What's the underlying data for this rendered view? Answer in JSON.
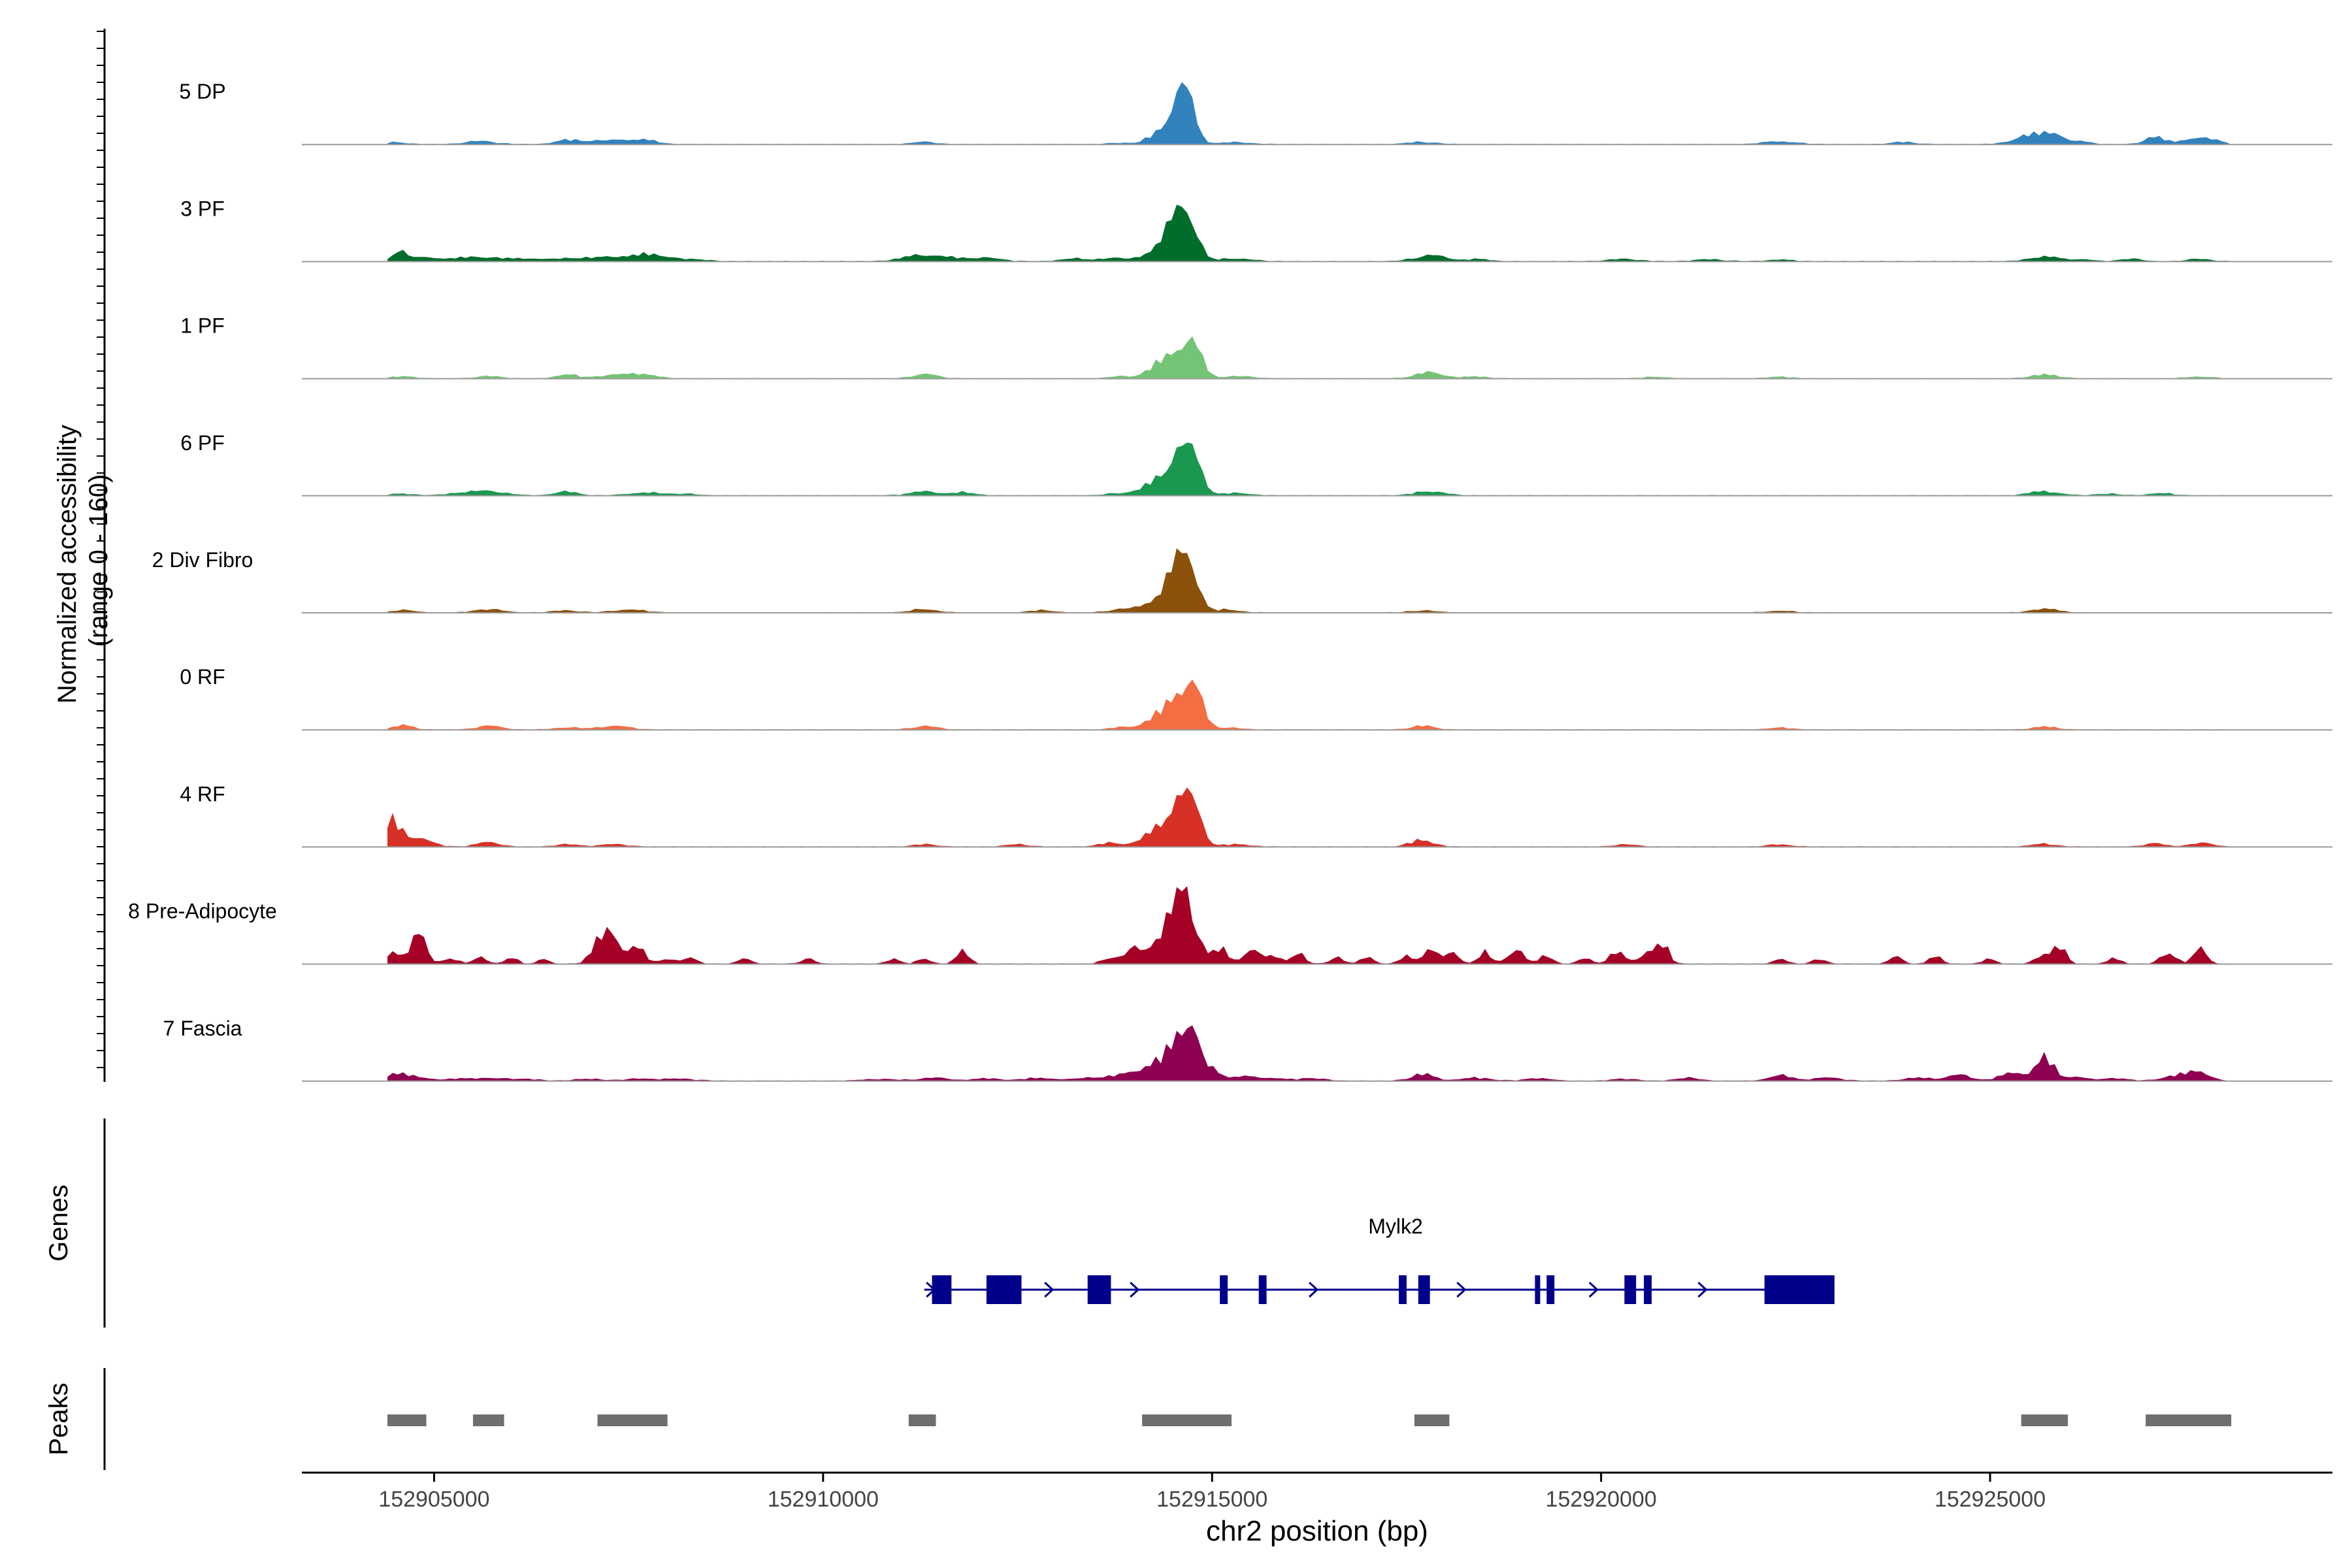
{
  "chart_data": {
    "type": "area",
    "title": "",
    "xlabel": "chr2 position (bp)",
    "ylabel_line1": "Normalized accessibility",
    "ylabel_line2": "(range 0 - 160)",
    "y_range": [
      0,
      160
    ],
    "x_range": [
      152903300,
      152929400
    ],
    "x_ticks": [
      152905000,
      152910000,
      152915000,
      152920000,
      152925000
    ],
    "x_tick_labels": [
      "152905000",
      "152910000",
      "152915000",
      "152920000",
      "152925000"
    ],
    "data_start": 152904400,
    "data_end": 152928100,
    "tracks": [
      {
        "name": "5 DP",
        "color": "#3182bd",
        "peaks": [
          [
            152904500,
            5,
            150
          ],
          [
            152905600,
            8,
            200
          ],
          [
            152906700,
            10,
            150
          ],
          [
            152907000,
            8,
            150
          ],
          [
            152907400,
            10,
            200
          ],
          [
            152907700,
            10,
            160
          ],
          [
            152911300,
            6,
            150
          ],
          [
            152913800,
            4,
            120
          ],
          [
            152914400,
            42,
            170
          ],
          [
            152914600,
            85,
            130
          ],
          [
            152914700,
            60,
            110
          ],
          [
            152915300,
            5,
            200
          ],
          [
            152917700,
            6,
            180
          ],
          [
            152922300,
            8,
            200
          ],
          [
            152923900,
            6,
            150
          ],
          [
            152925500,
            22,
            200
          ],
          [
            152925800,
            30,
            130
          ],
          [
            152926200,
            8,
            100
          ],
          [
            152927100,
            20,
            120
          ],
          [
            152927600,
            15,
            180
          ],
          [
            152927900,
            8,
            140
          ]
        ]
      },
      {
        "name": "3 PF",
        "color": "#006d2c",
        "peaks": [
          [
            152904550,
            30,
            80
          ],
          [
            152904900,
            10,
            250
          ],
          [
            152905600,
            12,
            250
          ],
          [
            152906200,
            8,
            180
          ],
          [
            152906800,
            10,
            200
          ],
          [
            152907300,
            12,
            180
          ],
          [
            152907800,
            20,
            220
          ],
          [
            152908400,
            5,
            150
          ],
          [
            152911300,
            18,
            250
          ],
          [
            152912000,
            10,
            250
          ],
          [
            152913200,
            8,
            150
          ],
          [
            152913700,
            10,
            150
          ],
          [
            152914400,
            50,
            200
          ],
          [
            152914600,
            90,
            140
          ],
          [
            152914750,
            60,
            100
          ],
          [
            152915300,
            8,
            200
          ],
          [
            152917800,
            16,
            200
          ],
          [
            152918400,
            6,
            150
          ],
          [
            152920300,
            6,
            200
          ],
          [
            152921400,
            5,
            200
          ],
          [
            152922300,
            5,
            150
          ],
          [
            152925700,
            14,
            180
          ],
          [
            152926200,
            6,
            120
          ],
          [
            152926800,
            8,
            120
          ],
          [
            152927700,
            6,
            150
          ]
        ]
      },
      {
        "name": "1 PF",
        "color": "#74c476",
        "peaks": [
          [
            152904600,
            5,
            150
          ],
          [
            152905700,
            6,
            150
          ],
          [
            152906700,
            12,
            120
          ],
          [
            152907300,
            10,
            200
          ],
          [
            152907700,
            12,
            150
          ],
          [
            152911300,
            12,
            150
          ],
          [
            152913800,
            5,
            120
          ],
          [
            152914400,
            45,
            200
          ],
          [
            152914650,
            70,
            130
          ],
          [
            152914800,
            45,
            100
          ],
          [
            152915300,
            6,
            200
          ],
          [
            152917800,
            16,
            180
          ],
          [
            152918400,
            5,
            150
          ],
          [
            152920700,
            4,
            150
          ],
          [
            152922300,
            4,
            150
          ],
          [
            152925700,
            10,
            180
          ],
          [
            152927700,
            5,
            150
          ]
        ]
      },
      {
        "name": "6 PF",
        "color": "#1a9850",
        "peaks": [
          [
            152904600,
            5,
            150
          ],
          [
            152905300,
            6,
            150
          ],
          [
            152905700,
            12,
            220
          ],
          [
            152906700,
            10,
            150
          ],
          [
            152907700,
            8,
            200
          ],
          [
            152908200,
            5,
            150
          ],
          [
            152911300,
            10,
            200
          ],
          [
            152911800,
            8,
            150
          ],
          [
            152913800,
            6,
            150
          ],
          [
            152914400,
            48,
            220
          ],
          [
            152914600,
            85,
            150
          ],
          [
            152914800,
            60,
            100
          ],
          [
            152915300,
            6,
            200
          ],
          [
            152917800,
            12,
            180
          ],
          [
            152925700,
            12,
            180
          ],
          [
            152926500,
            5,
            150
          ],
          [
            152927200,
            6,
            150
          ]
        ]
      },
      {
        "name": "2 Div Fibro",
        "color": "#8c510a",
        "peaks": [
          [
            152904600,
            8,
            120
          ],
          [
            152905700,
            10,
            160
          ],
          [
            152906700,
            6,
            150
          ],
          [
            152907500,
            8,
            200
          ],
          [
            152911300,
            10,
            150
          ],
          [
            152912800,
            6,
            150
          ],
          [
            152913800,
            8,
            150
          ],
          [
            152914400,
            48,
            220
          ],
          [
            152914600,
            100,
            140
          ],
          [
            152914750,
            70,
            100
          ],
          [
            152915200,
            8,
            150
          ],
          [
            152917700,
            6,
            150
          ],
          [
            152922300,
            5,
            150
          ],
          [
            152925700,
            12,
            150
          ]
        ]
      },
      {
        "name": "0 RF",
        "color": "#f46d43",
        "peaks": [
          [
            152904600,
            12,
            120
          ],
          [
            152905700,
            10,
            160
          ],
          [
            152906700,
            6,
            150
          ],
          [
            152907300,
            10,
            200
          ],
          [
            152911300,
            10,
            150
          ],
          [
            152913800,
            5,
            120
          ],
          [
            152914400,
            45,
            220
          ],
          [
            152914650,
            90,
            140
          ],
          [
            152914800,
            55,
            100
          ],
          [
            152915200,
            6,
            150
          ],
          [
            152917700,
            10,
            150
          ],
          [
            152922300,
            5,
            150
          ],
          [
            152925700,
            8,
            150
          ]
        ]
      },
      {
        "name": "4 RF",
        "color": "#d73027",
        "peaks": [
          [
            152904450,
            55,
            100
          ],
          [
            152904700,
            30,
            200
          ],
          [
            152905700,
            12,
            150
          ],
          [
            152906700,
            6,
            150
          ],
          [
            152907300,
            6,
            200
          ],
          [
            152911300,
            6,
            150
          ],
          [
            152912500,
            6,
            150
          ],
          [
            152913700,
            10,
            150
          ],
          [
            152914400,
            55,
            220
          ],
          [
            152914600,
            95,
            140
          ],
          [
            152914800,
            60,
            100
          ],
          [
            152915300,
            6,
            200
          ],
          [
            152917700,
            18,
            150
          ],
          [
            152920300,
            6,
            150
          ],
          [
            152922300,
            6,
            150
          ],
          [
            152925700,
            8,
            150
          ],
          [
            152927100,
            10,
            120
          ],
          [
            152927700,
            10,
            150
          ]
        ]
      },
      {
        "name": "8 Pre-Adipocyte",
        "color": "#a50026",
        "peaks": [
          [
            152904500,
            35,
            100
          ],
          [
            152904800,
            80,
            90
          ],
          [
            152905200,
            15,
            100
          ],
          [
            152905600,
            20,
            80
          ],
          [
            152906000,
            15,
            80
          ],
          [
            152906400,
            15,
            60
          ],
          [
            152907100,
            50,
            100
          ],
          [
            152907300,
            80,
            100
          ],
          [
            152907600,
            45,
            100
          ],
          [
            152908000,
            15,
            100
          ],
          [
            152908300,
            15,
            80
          ],
          [
            152909000,
            15,
            80
          ],
          [
            152909800,
            15,
            80
          ],
          [
            152910900,
            15,
            80
          ],
          [
            152911300,
            15,
            80
          ],
          [
            152911800,
            35,
            80
          ],
          [
            152913700,
            20,
            100
          ],
          [
            152914000,
            40,
            100
          ],
          [
            152914300,
            80,
            100
          ],
          [
            152914500,
            140,
            80
          ],
          [
            152914650,
            170,
            60
          ],
          [
            152914800,
            100,
            80
          ],
          [
            152915100,
            40,
            100
          ],
          [
            152915500,
            40,
            100
          ],
          [
            152915800,
            20,
            100
          ],
          [
            152916100,
            30,
            80
          ],
          [
            152916600,
            20,
            80
          ],
          [
            152917000,
            20,
            80
          ],
          [
            152917500,
            20,
            80
          ],
          [
            152917800,
            40,
            100
          ],
          [
            152918100,
            30,
            80
          ],
          [
            152918500,
            30,
            80
          ],
          [
            152918900,
            40,
            100
          ],
          [
            152919300,
            25,
            80
          ],
          [
            152919800,
            15,
            80
          ],
          [
            152920200,
            30,
            100
          ],
          [
            152920600,
            35,
            100
          ],
          [
            152920800,
            45,
            80
          ],
          [
            152922300,
            15,
            80
          ],
          [
            152922800,
            15,
            80
          ],
          [
            152923800,
            20,
            80
          ],
          [
            152924300,
            20,
            80
          ],
          [
            152925000,
            15,
            80
          ],
          [
            152925700,
            30,
            100
          ],
          [
            152925900,
            40,
            80
          ],
          [
            152926600,
            15,
            80
          ],
          [
            152927300,
            30,
            100
          ],
          [
            152927700,
            40,
            80
          ]
        ]
      },
      {
        "name": "7 Fascia",
        "color": "#8e0152",
        "peaks": [
          [
            152904500,
            20,
            120
          ],
          [
            152904800,
            10,
            150
          ],
          [
            152905500,
            8,
            250
          ],
          [
            152906100,
            6,
            200
          ],
          [
            152907000,
            5,
            200
          ],
          [
            152907700,
            6,
            200
          ],
          [
            152908200,
            5,
            200
          ],
          [
            152910700,
            5,
            200
          ],
          [
            152911400,
            8,
            200
          ],
          [
            152912100,
            6,
            200
          ],
          [
            152912800,
            8,
            200
          ],
          [
            152913500,
            10,
            200
          ],
          [
            152914000,
            18,
            200
          ],
          [
            152914300,
            40,
            180
          ],
          [
            152914600,
            120,
            130
          ],
          [
            152914750,
            90,
            90
          ],
          [
            152915000,
            30,
            120
          ],
          [
            152915400,
            12,
            150
          ],
          [
            152915800,
            8,
            150
          ],
          [
            152916300,
            8,
            150
          ],
          [
            152917700,
            18,
            150
          ],
          [
            152918400,
            8,
            200
          ],
          [
            152919200,
            8,
            150
          ],
          [
            152920300,
            6,
            150
          ],
          [
            152921100,
            8,
            150
          ],
          [
            152922300,
            14,
            150
          ],
          [
            152922900,
            8,
            200
          ],
          [
            152924100,
            8,
            200
          ],
          [
            152924600,
            15,
            150
          ],
          [
            152925300,
            20,
            180
          ],
          [
            152925700,
            60,
            120
          ],
          [
            152926100,
            12,
            120
          ],
          [
            152926600,
            8,
            150
          ],
          [
            152927400,
            15,
            180
          ],
          [
            152927700,
            25,
            120
          ]
        ]
      }
    ],
    "genes": {
      "label": "Genes",
      "name": "Mylk2",
      "start": 152911300,
      "end": 152923000,
      "strand": "+",
      "exons": [
        [
          152911400,
          152911650
        ],
        [
          152912100,
          152912550
        ],
        [
          152913400,
          152913700
        ],
        [
          152915100,
          152915200
        ],
        [
          152915600,
          152915700
        ],
        [
          152917400,
          152917500
        ],
        [
          152917650,
          152917800
        ],
        [
          152919150,
          152919200
        ],
        [
          152919300,
          152919400
        ],
        [
          152920300,
          152920450
        ],
        [
          152920550,
          152920650
        ],
        [
          152922100,
          152923000
        ]
      ],
      "arrows": [
        152911380,
        152912900,
        152914000,
        152916300,
        152918200,
        152919900,
        152921300
      ]
    },
    "peaks_track": {
      "label": "Peaks",
      "regions": [
        [
          152904400,
          152904900
        ],
        [
          152905500,
          152905900
        ],
        [
          152907100,
          152908000
        ],
        [
          152911100,
          152911450
        ],
        [
          152914100,
          152915250
        ],
        [
          152917600,
          152918050
        ],
        [
          152925400,
          152926000
        ],
        [
          152927000,
          152928100
        ]
      ]
    }
  }
}
